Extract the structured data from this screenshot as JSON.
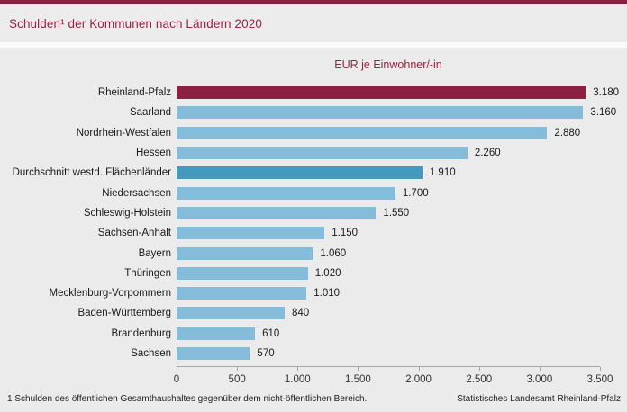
{
  "page": {
    "title": "Schulden¹ der Kommunen nach Ländern 2020",
    "footnote": "1 Schulden des öffentlichen Gesamthaushaltes gegenüber dem nicht-öffentlichen Bereich.",
    "source": "Statistisches Landesamt Rheinland-Pfalz"
  },
  "colors": {
    "accent_red": "#8b2042",
    "bar_blue": "#85bcd9",
    "bar_average_blue": "#4599bd",
    "panel_gray": "#ebebeb",
    "axis_gray": "#a8a8a8"
  },
  "chart_data": {
    "type": "bar",
    "orientation": "horizontal",
    "title": "Schulden der Kommunen nach Ländern 2020",
    "subtitle": "EUR je Einwohner/-in",
    "xlabel": "EUR je Einwohner/-in",
    "xlim": [
      0,
      3500
    ],
    "xticks": [
      0,
      500,
      1000,
      1500,
      2000,
      2500,
      3000,
      3500
    ],
    "xticklabels": [
      "0",
      "500",
      "1.000",
      "1.500",
      "2.000",
      "2.500",
      "3.000",
      "3.500"
    ],
    "grid": false,
    "legend": false,
    "items": [
      {
        "label": "Rheinland-Pfalz",
        "value": 3180,
        "display": "3.180",
        "color": "accent"
      },
      {
        "label": "Saarland",
        "value": 3160,
        "display": "3.160",
        "color": "default"
      },
      {
        "label": "Nordrhein-Westfalen",
        "value": 2880,
        "display": "2.880",
        "color": "default"
      },
      {
        "label": "Hessen",
        "value": 2260,
        "display": "2.260",
        "color": "default"
      },
      {
        "label": "Durchschnitt westd. Flächenländer",
        "value": 1910,
        "display": "1.910",
        "color": "average"
      },
      {
        "label": "Niedersachsen",
        "value": 1700,
        "display": "1.700",
        "color": "default"
      },
      {
        "label": "Schleswig-Holstein",
        "value": 1550,
        "display": "1.550",
        "color": "default"
      },
      {
        "label": "Sachsen-Anhalt",
        "value": 1150,
        "display": "1.150",
        "color": "default"
      },
      {
        "label": "Bayern",
        "value": 1060,
        "display": "1.060",
        "color": "default"
      },
      {
        "label": "Thüringen",
        "value": 1020,
        "display": "1.020",
        "color": "default"
      },
      {
        "label": "Mecklenburg-Vorpommern",
        "value": 1010,
        "display": "1.010",
        "color": "default"
      },
      {
        "label": "Baden-Württemberg",
        "value": 840,
        "display": "840",
        "color": "default"
      },
      {
        "label": "Brandenburg",
        "value": 610,
        "display": "610",
        "color": "default"
      },
      {
        "label": "Sachsen",
        "value": 570,
        "display": "570",
        "color": "default"
      }
    ]
  }
}
